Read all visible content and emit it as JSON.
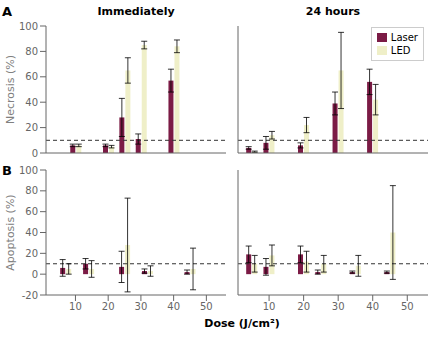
{
  "chart_data": [
    {
      "type": "bar",
      "panel_label": "A",
      "title": "Immediately",
      "ylabel": "Necrosis (%)",
      "x": [
        10,
        20,
        25,
        30,
        40,
        50
      ],
      "series": [
        {
          "name": "Laser",
          "color": "#7B1B45",
          "values": [
            6,
            6,
            28,
            11,
            57,
            0
          ],
          "errors": [
            1,
            1,
            15,
            4,
            9,
            0
          ]
        },
        {
          "name": "LED",
          "color": "#EFEFC8",
          "values": [
            6,
            5,
            65,
            85,
            84,
            0
          ],
          "errors": [
            1,
            1,
            10,
            3,
            5,
            0
          ]
        }
      ],
      "reference_line": 10,
      "xlim": [
        1,
        56
      ],
      "xticks": [
        10,
        20,
        30,
        40,
        50
      ],
      "ylim": [
        0,
        100
      ],
      "yticks": [
        0,
        20,
        40,
        60,
        80,
        100
      ],
      "tick_labels": "y",
      "grid": false
    },
    {
      "type": "bar",
      "title": "24 hours",
      "x": [
        5,
        10,
        20,
        30,
        40,
        50
      ],
      "series": [
        {
          "name": "Laser",
          "color": "#7B1B45",
          "values": [
            4,
            8,
            6,
            39,
            56,
            0
          ],
          "errors": [
            1,
            5,
            2,
            9,
            10,
            0
          ]
        },
        {
          "name": "LED",
          "color": "#EFEFC8",
          "values": [
            1,
            14,
            22,
            65,
            42,
            0
          ],
          "errors": [
            0.5,
            3,
            6,
            30,
            12,
            0
          ]
        }
      ],
      "reference_line": 10,
      "xlim": [
        1,
        56
      ],
      "xticks": [
        10,
        20,
        30,
        40,
        50
      ],
      "ylim": [
        0,
        100
      ],
      "yticks": [
        0,
        20,
        40,
        60,
        80,
        100
      ],
      "tick_labels": false,
      "legend": "upper right",
      "grid": false
    },
    {
      "type": "bar",
      "panel_label": "B",
      "ylabel": "Apoptosis (%)",
      "xlabel": "Dose (J/cm²)",
      "x": [
        7,
        14,
        25,
        32,
        45
      ],
      "series": [
        {
          "name": "Laser",
          "color": "#7B1B45",
          "values": [
            6,
            10,
            7,
            3,
            2
          ],
          "errors": [
            8,
            5,
            15,
            2,
            2
          ]
        },
        {
          "name": "LED",
          "color": "#EFEFC8",
          "values": [
            5,
            5,
            28,
            3,
            5
          ],
          "errors": [
            5,
            8,
            45,
            5,
            20
          ]
        }
      ],
      "reference_line": 10,
      "xlim": [
        1,
        56
      ],
      "xticks": [
        10,
        20,
        30,
        40,
        50
      ],
      "ylim": [
        -20,
        100
      ],
      "yticks": [
        -20,
        0,
        20,
        40,
        60,
        80,
        100
      ],
      "tick_labels": true,
      "grid": false
    },
    {
      "type": "bar",
      "x": [
        5,
        10,
        20,
        25,
        35,
        45
      ],
      "series": [
        {
          "name": "Laser",
          "color": "#7B1B45",
          "values": [
            19,
            7,
            19,
            2,
            2,
            2
          ],
          "errors": [
            8,
            8,
            8,
            2,
            1,
            1
          ]
        },
        {
          "name": "LED",
          "color": "#EFEFC8",
          "values": [
            10,
            18,
            12,
            10,
            8,
            40
          ],
          "errors": [
            8,
            10,
            10,
            8,
            10,
            45
          ]
        }
      ],
      "reference_line": 10,
      "xlim": [
        1,
        56
      ],
      "xticks": [
        10,
        20,
        30,
        40,
        50
      ],
      "ylim": [
        -20,
        100
      ],
      "yticks": [
        -20,
        0,
        20,
        40,
        60,
        80,
        100
      ],
      "tick_labels": "x",
      "grid": false
    }
  ]
}
